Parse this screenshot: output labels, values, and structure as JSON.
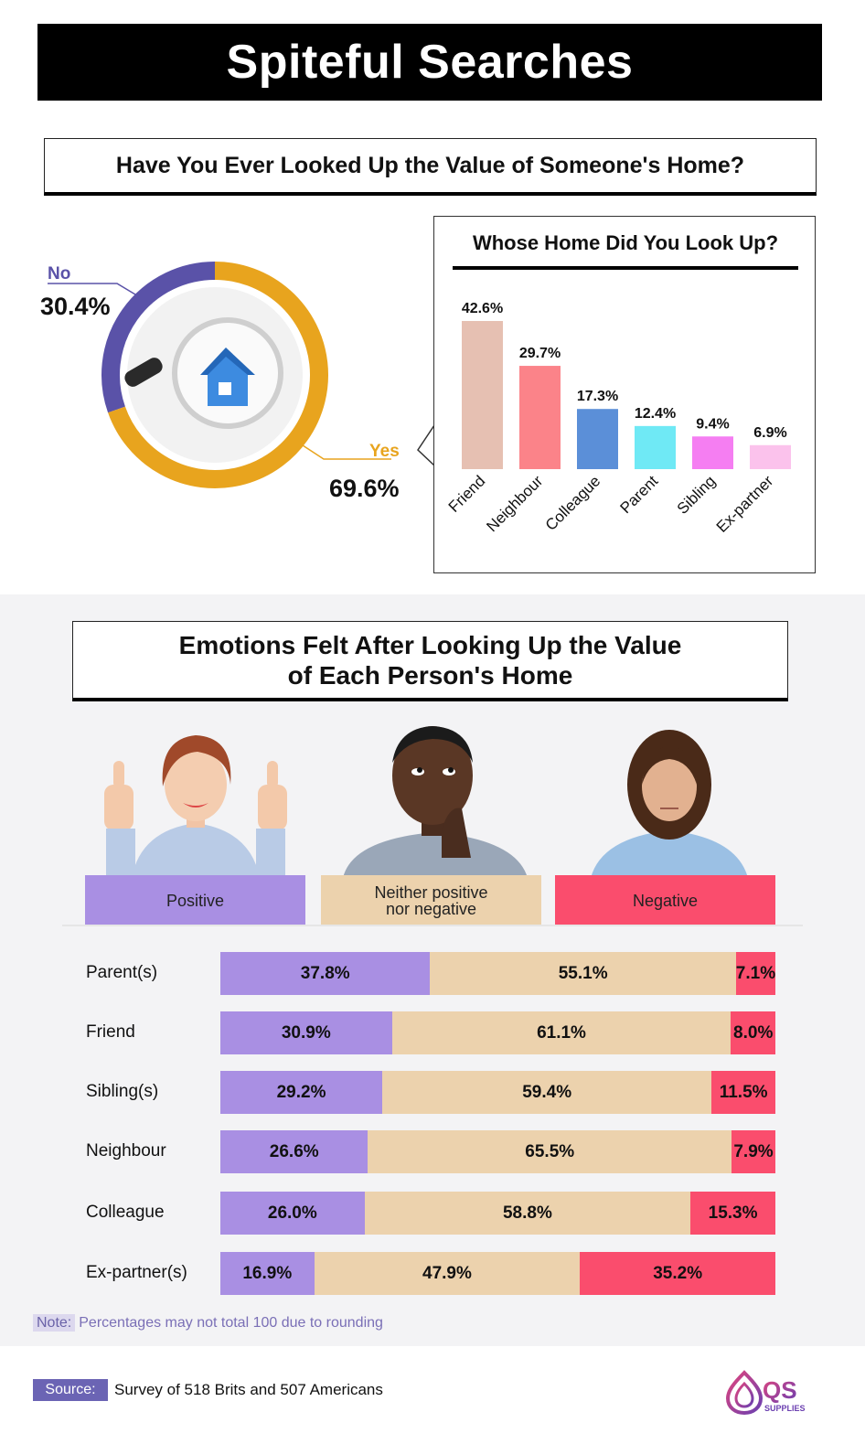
{
  "title": "Spiteful Searches",
  "question": "Have You Ever Looked Up the Value of Someone's Home?",
  "donut": {
    "no_label": "No",
    "no_pct": "30.4%",
    "yes_label": "Yes",
    "yes_pct": "69.6%"
  },
  "bar_title": "Whose Home Did You Look Up?",
  "emotions_title_line1": "Emotions Felt After Looking Up the Value",
  "emotions_title_line2": "of Each Person's Home",
  "categories": {
    "positive": "Positive",
    "neutral_line1": "Neither positive",
    "neutral_line2": "nor negative",
    "negative": "Negative"
  },
  "note_tag": "Note:",
  "note_text": "Percentages may not total 100 due to rounding",
  "source_tag": "Source:",
  "source_text": "Survey of 518 Brits and 507 Americans",
  "logo_text": "QS",
  "logo_sub": "SUPPLIES",
  "colors": {
    "yes": "#e8a41e",
    "no": "#5a52a8",
    "positive": "#a98fe3",
    "neutral": "#ecd2ad",
    "negative": "#fa4d6d"
  },
  "chart_data": [
    {
      "type": "pie",
      "categories": [
        "No",
        "Yes"
      ],
      "values": [
        30.4,
        69.6
      ],
      "title": "Have You Ever Looked Up the Value of Someone's Home?",
      "colors": [
        "#5a52a8",
        "#e8a41e"
      ]
    },
    {
      "type": "bar",
      "title": "Whose Home Did You Look Up?",
      "categories": [
        "Friend",
        "Neighbour",
        "Colleague",
        "Parent",
        "Sibling",
        "Ex-partner"
      ],
      "values": [
        42.6,
        29.7,
        17.3,
        12.4,
        9.4,
        6.9
      ],
      "labels": [
        "42.6%",
        "29.7%",
        "17.3%",
        "12.4%",
        "9.4%",
        "6.9%"
      ],
      "colors": [
        "#e6c0b2",
        "#fb8389",
        "#5b8fd8",
        "#6fe9f5",
        "#f57ef2",
        "#fbc2ec"
      ],
      "ylim": [
        0,
        45
      ]
    },
    {
      "type": "bar",
      "stacked": true,
      "orientation": "horizontal",
      "title": "Emotions Felt After Looking Up the Value of Each Person's Home",
      "categories": [
        "Parent(s)",
        "Friend",
        "Sibling(s)",
        "Neighbour",
        "Colleague",
        "Ex-partner(s)"
      ],
      "series": [
        {
          "name": "Positive",
          "values": [
            37.8,
            30.9,
            29.2,
            26.6,
            26.0,
            16.9
          ],
          "labels": [
            "37.8%",
            "30.9%",
            "29.2%",
            "26.6%",
            "26.0%",
            "16.9%"
          ]
        },
        {
          "name": "Neither positive nor negative",
          "values": [
            55.1,
            61.1,
            59.4,
            65.5,
            58.8,
            47.9
          ],
          "labels": [
            "55.1%",
            "61.1%",
            "59.4%",
            "65.5%",
            "58.8%",
            "47.9%"
          ]
        },
        {
          "name": "Negative",
          "values": [
            7.1,
            8.0,
            11.5,
            7.9,
            15.3,
            35.2
          ],
          "labels": [
            "7.1%",
            "8.0%",
            "11.5%",
            "7.9%",
            "15.3%",
            "35.2%"
          ]
        }
      ]
    }
  ]
}
